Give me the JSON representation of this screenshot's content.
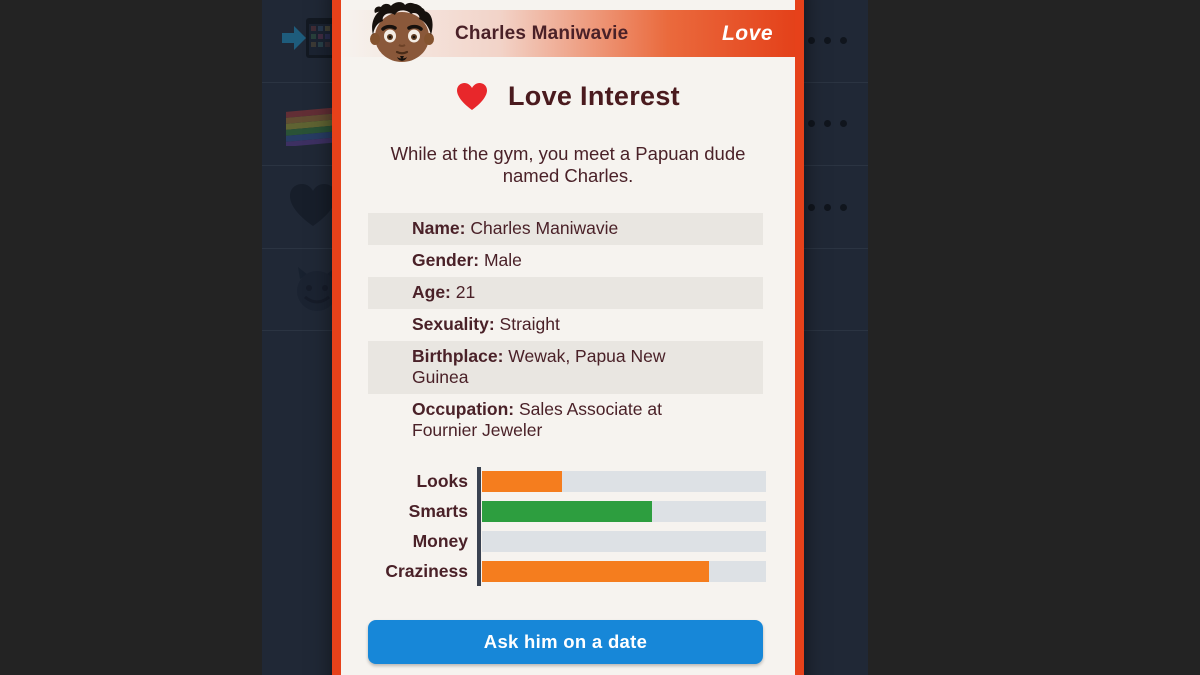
{
  "dialog": {
    "header": {
      "name": "Charles Maniwavie",
      "badge": "Love"
    },
    "title": "Love Interest",
    "description": "While at the gym, you meet a Papuan dude named Charles.",
    "info": [
      {
        "label": "Name:",
        "value": "Charles Maniwavie"
      },
      {
        "label": "Gender:",
        "value": "Male"
      },
      {
        "label": "Age:",
        "value": "21"
      },
      {
        "label": "Sexuality:",
        "value": "Straight"
      },
      {
        "label": "Birthplace:",
        "value": "Wewak, Papua New Guinea"
      },
      {
        "label": "Occupation:",
        "value": "Sales Associate at Fournier Jeweler"
      }
    ],
    "stats": [
      {
        "label": "Looks",
        "percent": 28,
        "color": "#f57d1e"
      },
      {
        "label": "Smarts",
        "percent": 60,
        "color": "#2d9e3f"
      },
      {
        "label": "Money",
        "percent": 0,
        "color": "#f57d1e"
      },
      {
        "label": "Craziness",
        "percent": 80,
        "color": "#f57d1e"
      }
    ],
    "action_button": "Ask him on a date"
  },
  "background_menu": {
    "icons": [
      "date-calendar-arrow",
      "rainbow-flag",
      "black-heart",
      "devil-face"
    ],
    "options_dots": "•••"
  },
  "colors": {
    "modal_border": "#e6411a",
    "modal_background": "#f6f3ef",
    "text_maroon": "#4a2128",
    "row_shade": "#e9e6e1",
    "bar_track": "#dde1e5",
    "bar_orange": "#f57d1e",
    "bar_green": "#2d9e3f",
    "button_blue": "#1787d8",
    "menu_background": "#202836",
    "outer_background": "#232323"
  }
}
